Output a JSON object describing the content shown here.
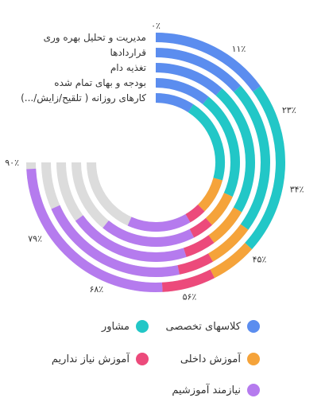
{
  "chart_data": {
    "type": "radial-bar",
    "direction": "rtl",
    "tick_labels": [
      "۰٪",
      "۱۱٪",
      "۲۳٪",
      "۳۴٪",
      "۴۵٪",
      "۵۶٪",
      "۶۸٪",
      "۷۹٪",
      "۹۰٪"
    ],
    "tick_values": [
      0,
      11.25,
      22.5,
      33.75,
      45,
      56.25,
      67.5,
      78.75,
      90
    ],
    "max": 90,
    "background_track": true,
    "categories": [
      "مدیریت و تحلیل بهره وری",
      "قراردادها",
      "تغذیه دام",
      "بودجه و بهای تمام شده",
      "کارهای روزانه ( تلقیح/زایش/...)"
    ],
    "series": [
      {
        "name": "کلاسهای تخصصی",
        "color": "#5b8def",
        "values": [
          18,
          16,
          14,
          13,
          11
        ]
      },
      {
        "name": "مشاور",
        "color": "#22c7c7",
        "values": [
          26,
          26,
          26,
          25,
          24
        ]
      },
      {
        "name": "آموزش داخلی",
        "color": "#f5a33a",
        "values": [
          7,
          8,
          8,
          8,
          10
        ]
      },
      {
        "name": "آموزش نیاز نداریم",
        "color": "#ec4a7b",
        "values": [
          8,
          6,
          6,
          5,
          5
        ]
      },
      {
        "name": "نیازمند آموزشیم",
        "color": "#b57bee",
        "values": [
          30,
          26,
          24,
          22,
          18
        ]
      }
    ]
  },
  "colors": {
    "track": "#dcdcdc",
    "text": "#333333"
  }
}
